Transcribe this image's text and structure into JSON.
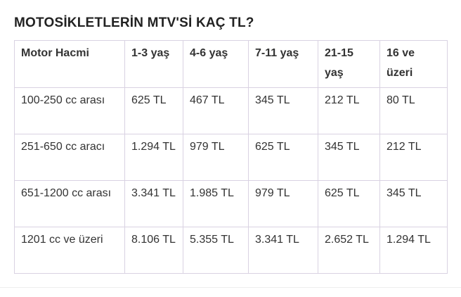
{
  "title": "MOTOSİKLETLERİN MTV'Sİ KAÇ TL?",
  "table": {
    "header": [
      "Motor Hacmi",
      "1-3 yaş",
      "4-6 yaş",
      "7-11 yaş",
      "21-15 yaş",
      "16 ve üzeri"
    ],
    "rows": [
      [
        "100-250 cc arası",
        "625 TL",
        "467 TL",
        "345 TL",
        "212 TL",
        "80 TL"
      ],
      [
        "251-650 cc aracı",
        "1.294 TL",
        "979 TL",
        "625 TL",
        "345 TL",
        "212 TL"
      ],
      [
        "651-1200 cc arası",
        "3.341 TL",
        "1.985 TL",
        "979 TL",
        "625 TL",
        "345 TL"
      ],
      [
        "1201 cc ve üzeri",
        "8.106 TL",
        "5.355 TL",
        "3.341 TL",
        "2.652 TL",
        "1.294 TL"
      ]
    ]
  }
}
